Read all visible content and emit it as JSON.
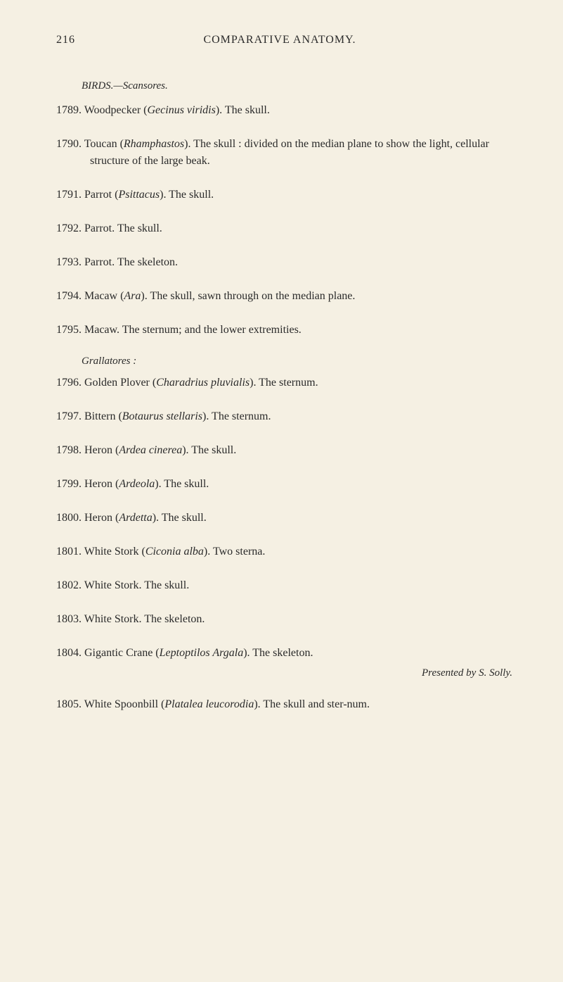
{
  "page_number": "216",
  "header_title": "COMPARATIVE ANATOMY.",
  "section_birds": "BIRDS.—Scansores.",
  "section_grallatores": "Grallatores :",
  "entries": {
    "e1789": {
      "num": "1789.",
      "text": "Woodpecker (",
      "latin": "Gecinus viridis",
      "after": ").   The skull."
    },
    "e1790": {
      "num": "1790.",
      "text": "Toucan (",
      "latin": "Rhamphastos",
      "after": ").   The skull : divided on the median plane to show the light, cellular structure of the large beak."
    },
    "e1791": {
      "num": "1791.",
      "text": "Parrot (",
      "latin": "Psittacus",
      "after": ").   The skull."
    },
    "e1792": {
      "num": "1792.",
      "text": "Parrot.   The skull."
    },
    "e1793": {
      "num": "1793.",
      "text": "Parrot.   The skeleton."
    },
    "e1794": {
      "num": "1794.",
      "text": "Macaw (",
      "latin": "Ara",
      "after": ").  The skull, sawn through on the median plane."
    },
    "e1795": {
      "num": "1795.",
      "text": "Macaw.   The sternum; and the lower extremities."
    },
    "e1796": {
      "num": "1796.",
      "text": "Golden Plover (",
      "latin": "Charadrius pluvialis",
      "after": ").   The sternum."
    },
    "e1797": {
      "num": "1797.",
      "text": "Bittern (",
      "latin": "Botaurus stellaris",
      "after": ").   The sternum."
    },
    "e1798": {
      "num": "1798.",
      "text": "Heron (",
      "latin": "Ardea cinerea",
      "after": ").   The skull."
    },
    "e1799": {
      "num": "1799.",
      "text": "Heron (",
      "latin": "Ardeola",
      "after": ").  The skull."
    },
    "e1800": {
      "num": "1800.",
      "text": "Heron (",
      "latin": "Ardetta",
      "after": ").   The skull."
    },
    "e1801": {
      "num": "1801.",
      "text": "White Stork (",
      "latin": "Ciconia alba",
      "after": ").   Two sterna."
    },
    "e1802": {
      "num": "1802.",
      "text": "White Stork.   The skull."
    },
    "e1803": {
      "num": "1803.",
      "text": "White Stork.   The skeleton."
    },
    "e1804": {
      "num": "1804.",
      "text": "Gigantic Crane (",
      "latin": "Leptoptilos Argala",
      "after": ").   The skeleton."
    },
    "e1804_credit": "Presented by S. Solly.",
    "e1805": {
      "num": "1805.",
      "text": "White Spoonbill (",
      "latin": "Platalea leucorodia",
      "after": ").   The skull and ster-num."
    }
  }
}
